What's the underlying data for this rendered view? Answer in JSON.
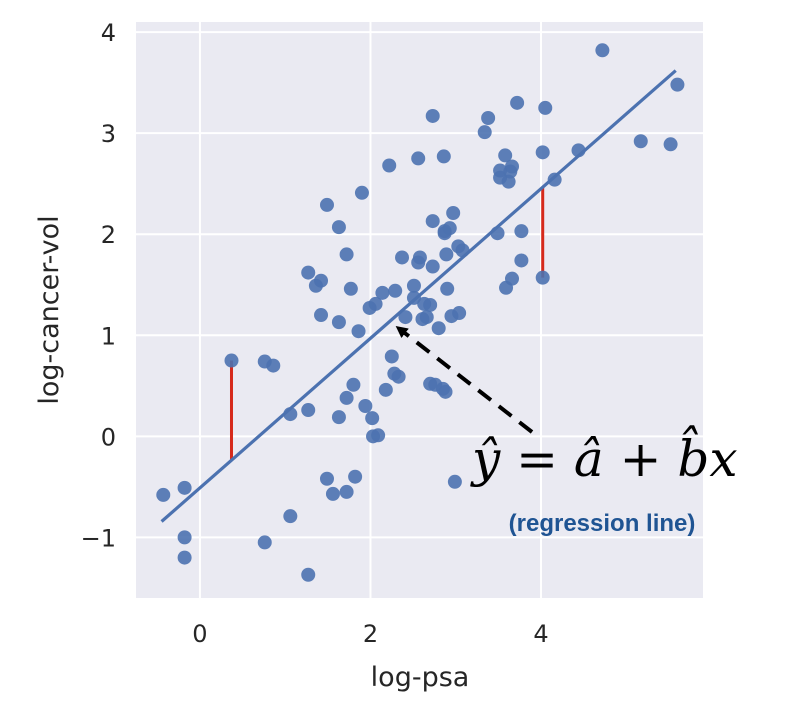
{
  "chart_data": {
    "type": "scatter",
    "title": "",
    "xlabel": "log-psa",
    "ylabel": "log-cancer-vol",
    "xlim": [
      -0.75,
      5.9
    ],
    "ylim": [
      -1.6,
      4.1
    ],
    "xticks": [
      0,
      2,
      4
    ],
    "xtick_labels": [
      "0",
      "2",
      "4"
    ],
    "yticks": [
      -1,
      0,
      1,
      2,
      3,
      4
    ],
    "ytick_labels": [
      "−1",
      "0",
      "1",
      "2",
      "3",
      "4"
    ],
    "grid": true,
    "points": [
      [
        -0.43,
        -0.58
      ],
      [
        -0.18,
        -0.51
      ],
      [
        -0.18,
        -1.0
      ],
      [
        -0.18,
        -1.2
      ],
      [
        0.37,
        0.75
      ],
      [
        0.76,
        0.74
      ],
      [
        0.86,
        0.7
      ],
      [
        0.76,
        -1.05
      ],
      [
        1.06,
        0.22
      ],
      [
        1.06,
        -0.79
      ],
      [
        1.27,
        0.26
      ],
      [
        1.27,
        -1.37
      ],
      [
        1.27,
        1.62
      ],
      [
        1.36,
        1.49
      ],
      [
        1.42,
        1.54
      ],
      [
        1.42,
        1.2
      ],
      [
        1.49,
        2.29
      ],
      [
        1.49,
        -0.42
      ],
      [
        1.56,
        -0.57
      ],
      [
        1.63,
        1.13
      ],
      [
        1.63,
        2.07
      ],
      [
        1.63,
        0.19
      ],
      [
        1.72,
        1.8
      ],
      [
        1.72,
        -0.55
      ],
      [
        1.72,
        0.38
      ],
      [
        1.77,
        1.46
      ],
      [
        1.8,
        0.51
      ],
      [
        1.82,
        -0.4
      ],
      [
        1.86,
        1.04
      ],
      [
        1.9,
        2.41
      ],
      [
        1.94,
        0.3
      ],
      [
        1.99,
        1.27
      ],
      [
        2.02,
        0.18
      ],
      [
        2.03,
        0.0
      ],
      [
        2.06,
        1.31
      ],
      [
        2.09,
        0.01
      ],
      [
        2.14,
        1.42
      ],
      [
        2.18,
        0.46
      ],
      [
        2.22,
        2.68
      ],
      [
        2.25,
        0.79
      ],
      [
        2.28,
        0.62
      ],
      [
        2.29,
        1.44
      ],
      [
        2.33,
        0.59
      ],
      [
        2.37,
        1.77
      ],
      [
        2.41,
        1.18
      ],
      [
        2.51,
        1.37
      ],
      [
        2.51,
        1.49
      ],
      [
        2.56,
        1.72
      ],
      [
        2.56,
        2.75
      ],
      [
        2.58,
        1.77
      ],
      [
        2.61,
        1.16
      ],
      [
        2.63,
        1.31
      ],
      [
        2.66,
        1.18
      ],
      [
        2.7,
        0.52
      ],
      [
        2.7,
        1.3
      ],
      [
        2.73,
        2.13
      ],
      [
        2.73,
        3.17
      ],
      [
        2.73,
        1.68
      ],
      [
        2.76,
        0.51
      ],
      [
        2.8,
        1.07
      ],
      [
        2.85,
        0.47
      ],
      [
        2.86,
        2.77
      ],
      [
        2.87,
        2.03
      ],
      [
        2.87,
        2.01
      ],
      [
        2.88,
        0.44
      ],
      [
        2.89,
        1.8
      ],
      [
        2.9,
        1.46
      ],
      [
        2.93,
        2.06
      ],
      [
        2.95,
        1.19
      ],
      [
        2.97,
        2.21
      ],
      [
        2.99,
        -0.45
      ],
      [
        3.03,
        1.88
      ],
      [
        3.04,
        1.22
      ],
      [
        3.08,
        1.84
      ],
      [
        3.34,
        3.01
      ],
      [
        3.38,
        3.15
      ],
      [
        3.49,
        2.01
      ],
      [
        3.52,
        2.56
      ],
      [
        3.52,
        2.63
      ],
      [
        3.58,
        2.78
      ],
      [
        3.59,
        1.47
      ],
      [
        3.62,
        2.52
      ],
      [
        3.64,
        2.62
      ],
      [
        3.66,
        2.67
      ],
      [
        3.66,
        1.56
      ],
      [
        3.72,
        3.3
      ],
      [
        3.77,
        1.74
      ],
      [
        3.77,
        2.03
      ],
      [
        4.02,
        2.81
      ],
      [
        4.02,
        1.57
      ],
      [
        4.05,
        3.25
      ],
      [
        4.16,
        2.54
      ],
      [
        4.44,
        2.83
      ],
      [
        4.72,
        3.82
      ],
      [
        5.17,
        2.92
      ],
      [
        5.52,
        2.89
      ],
      [
        5.6,
        3.48
      ]
    ],
    "regression_line": {
      "a": -0.51,
      "b": 0.74,
      "x_range": [
        -0.45,
        5.58
      ]
    },
    "residuals": [
      {
        "x": 0.37,
        "y_obs": 0.75
      },
      {
        "x": 4.02,
        "y_obs": 1.57
      }
    ],
    "colors": {
      "plot_bg": "#EAEAF2",
      "grid": "#FFFFFF",
      "points": "#4C72B0",
      "line": "#4C72B0",
      "residual": "#D62A1C",
      "caption": "#1F5493"
    },
    "annotation": {
      "equation": "ŷ = â + b̂x",
      "caption": "(regression line)",
      "arrow_target_x": 2.22
    }
  }
}
